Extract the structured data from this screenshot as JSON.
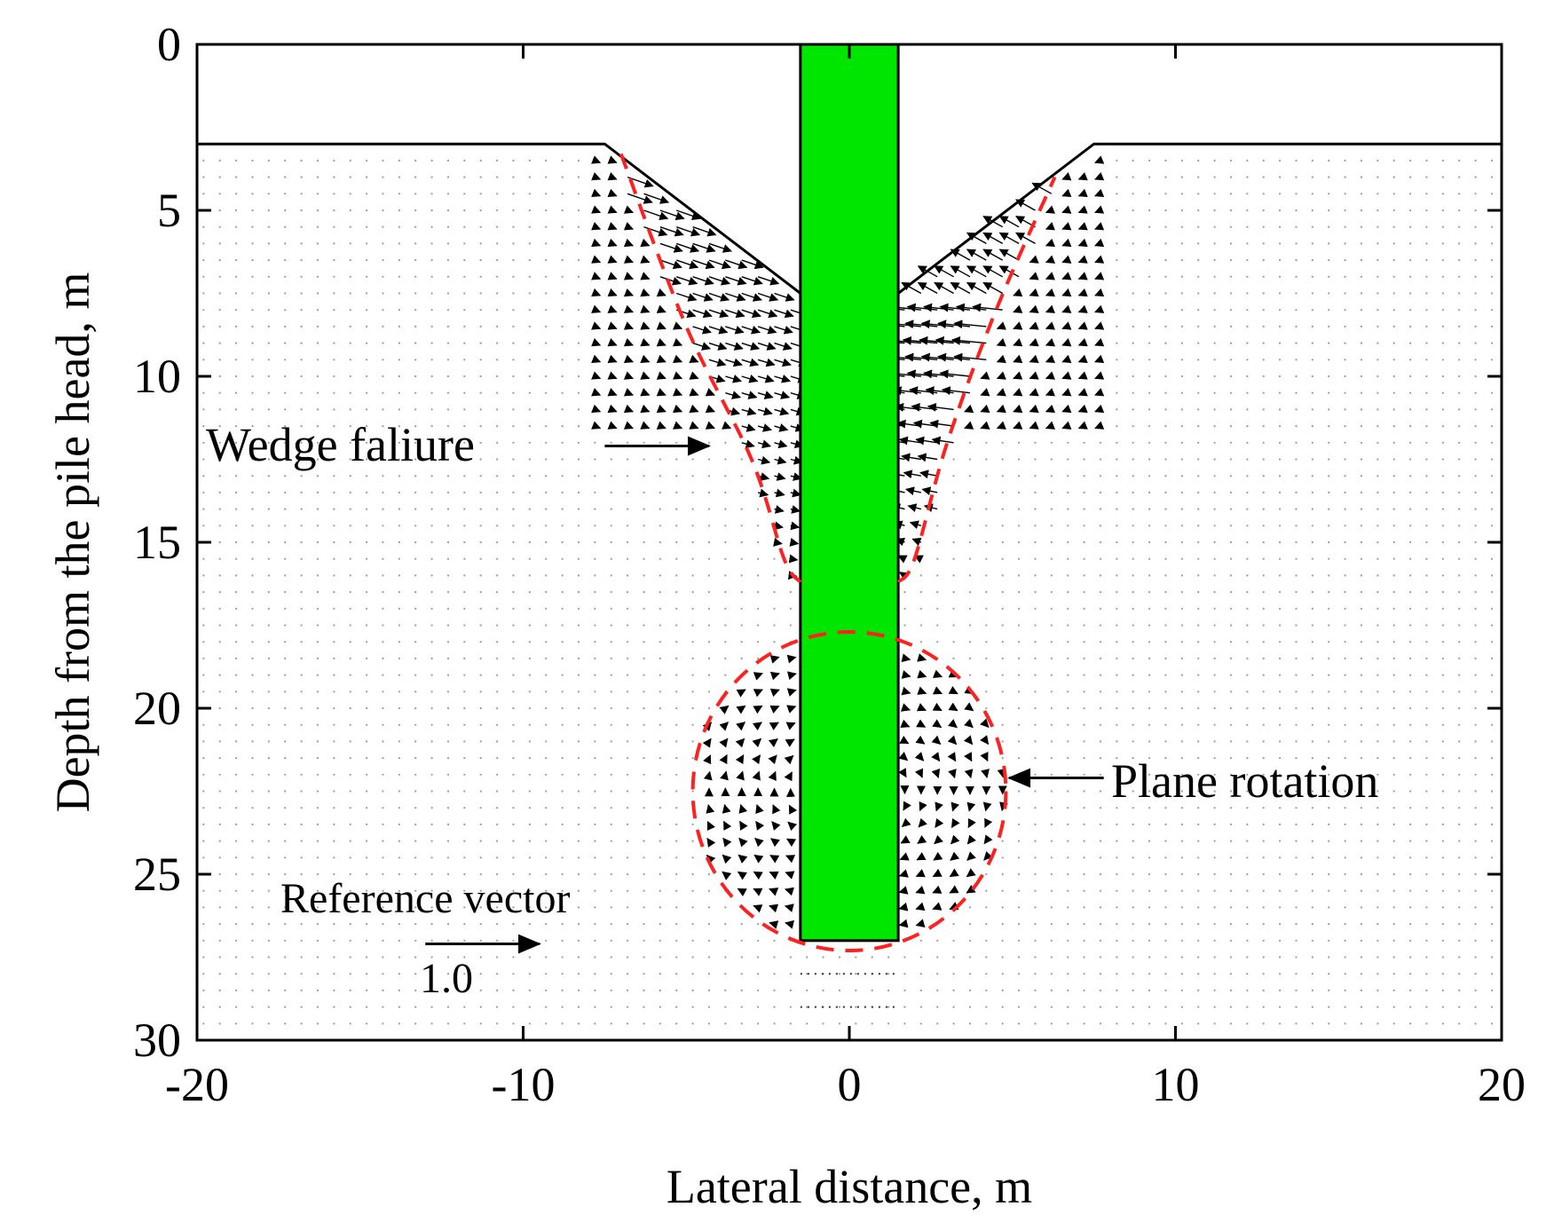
{
  "chart_data": {
    "type": "vector_field",
    "xlabel": "Lateral distance, m",
    "ylabel": "Depth from the pile head, m",
    "xlim": [
      -20,
      20
    ],
    "ylim": [
      0,
      30
    ],
    "y_inverted": true,
    "x_ticks": [
      -20,
      -10,
      0,
      10,
      20
    ],
    "x_tick_labels": [
      "-20",
      "-10",
      "0",
      "10",
      "20"
    ],
    "y_ticks": [
      0,
      5,
      10,
      15,
      20,
      25,
      30
    ],
    "y_tick_labels": [
      "0",
      "5",
      "10",
      "15",
      "20",
      "25",
      "30"
    ],
    "colors": {
      "pile": "#00e600",
      "failure_zone": "#ff2020",
      "vectors": "#000000"
    },
    "pile": {
      "x_left": -1.5,
      "x_right": 1.5,
      "top_depth": 0,
      "tip_depth": 27
    },
    "ground_surface": {
      "left": [
        [
          -20,
          3
        ],
        [
          -7.5,
          3
        ],
        [
          -1.5,
          7.5
        ]
      ],
      "right": [
        [
          1.5,
          7.5
        ],
        [
          7.5,
          3
        ],
        [
          20,
          3
        ]
      ]
    },
    "wedge_failure_boundary": {
      "left": [
        [
          -7,
          3.3
        ],
        [
          -5,
          8.5
        ],
        [
          -3,
          12.5
        ],
        [
          -2,
          15.5
        ],
        [
          -1.5,
          16.2
        ]
      ],
      "right": [
        [
          1.5,
          16.2
        ],
        [
          2,
          15.5
        ],
        [
          3,
          12
        ],
        [
          4.5,
          8
        ],
        [
          6.3,
          4
        ]
      ]
    },
    "plane_rotation_zone": {
      "center": [
        0,
        22.5
      ],
      "radius_x": 4.8,
      "radius_y": 4.8
    },
    "reference_vector": {
      "magnitude": 1.0,
      "label": "1.0",
      "start": [
        -13,
        27.1
      ],
      "end": [
        -9.5,
        27.1
      ]
    },
    "annotations": [
      {
        "text": "Wedge faliure",
        "arrow_from": [
          -7.5,
          12.1
        ],
        "arrow_to": [
          -4.3,
          12.1
        ]
      },
      {
        "text": "Plane rotation",
        "arrow_from": [
          7.8,
          22.1
        ],
        "arrow_to": [
          4.9,
          22.1
        ]
      },
      {
        "text": "Reference vector"
      }
    ],
    "grid": false
  }
}
